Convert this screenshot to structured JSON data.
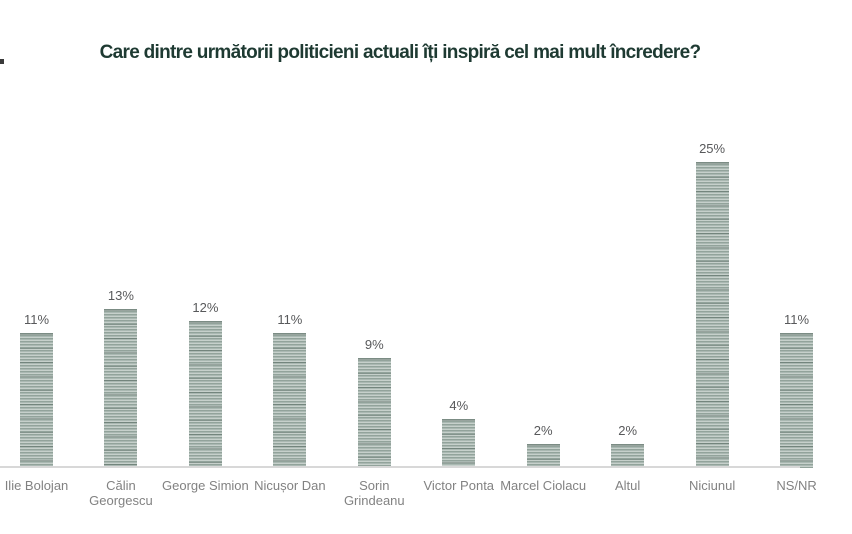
{
  "chart_data": {
    "type": "bar",
    "title": "Care dintre următorii politicieni actuali îți inspiră cel mai mult încredere?",
    "categories": [
      "Ilie Bolojan",
      "Călin Georgescu",
      "George Simion",
      "Nicușor Dan",
      "Sorin Grindeanu",
      "Victor Ponta",
      "Marcel Ciolacu",
      "Altul",
      "Niciunul",
      "NS/NR"
    ],
    "category_display": [
      "Ilie Bolojan",
      "Călin\nGeorgescu",
      "George Simion",
      "Nicușor Dan",
      "Sorin\nGrindeanu",
      "Victor Ponta",
      "Marcel Ciolacu",
      "Altul",
      "Niciunul",
      "NS/NR"
    ],
    "values": [
      11,
      13,
      12,
      11,
      9,
      4,
      2,
      2,
      25,
      11
    ],
    "value_labels": [
      "11%",
      "13%",
      "12%",
      "11%",
      "9%",
      "4%",
      "2%",
      "2%",
      "25%",
      "11%"
    ],
    "xlabel": "",
    "ylabel": "",
    "ylim": [
      0,
      27
    ],
    "grid": false,
    "legend": false,
    "bar_texture": "horizontal-stripes",
    "colors": {
      "bar_light": "#c6d0cb",
      "bar_mid": "#aab8b2",
      "bar_dark": "#92a39b",
      "bar_edge": "#7b8c84",
      "title": "#1e3a32",
      "value_label": "#58595b",
      "category_label": "#828282",
      "axis_line": "#d8d8d8",
      "background": "#ffffff"
    },
    "notes_layout": {
      "last_category_clipped_at_right_edge": true
    }
  }
}
